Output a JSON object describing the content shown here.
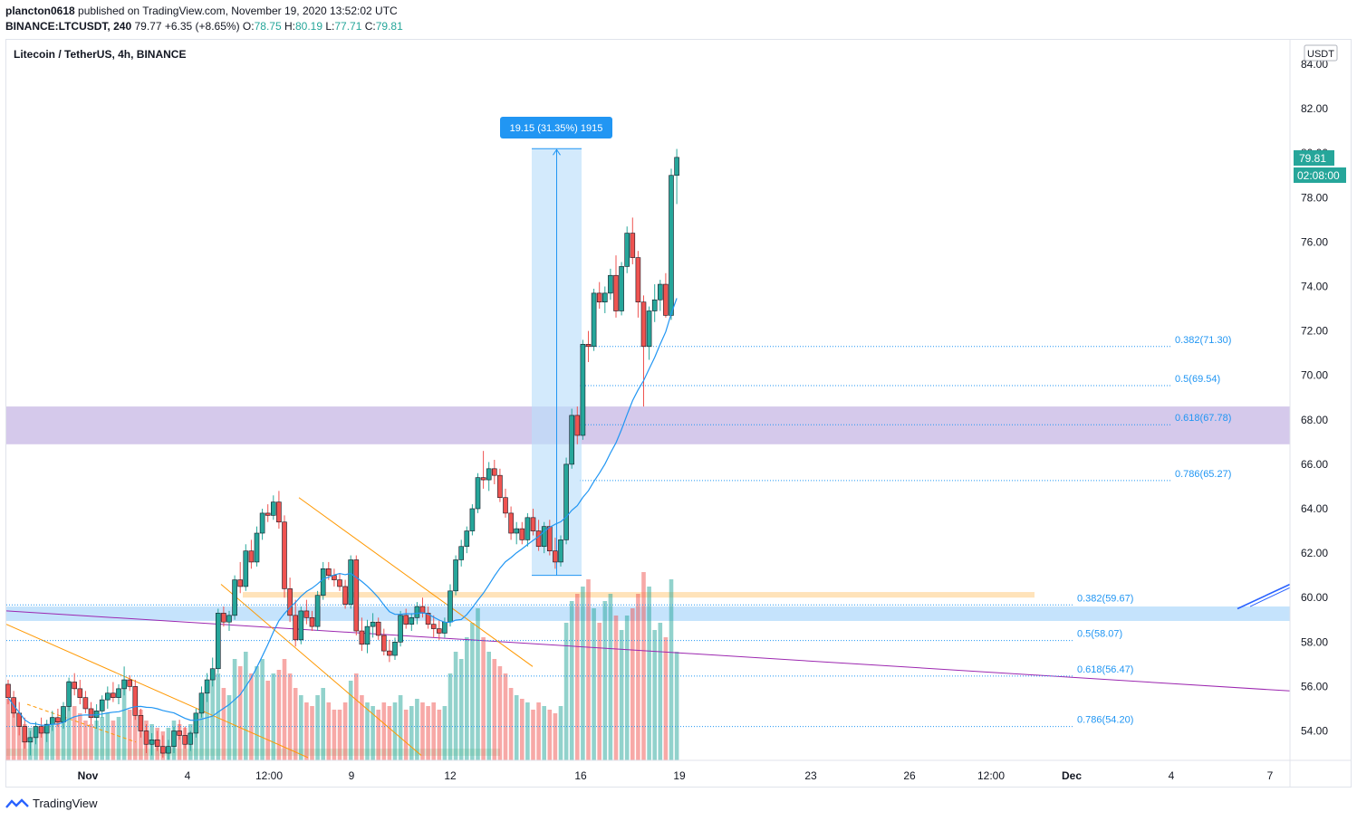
{
  "header": {
    "publisher": "plancton0618",
    "published_text": "published on TradingView.com, November 19, 2020 13:52:02 UTC",
    "symbol": "BINANCE:LTCUSDT, 240",
    "last": "79.77",
    "change": "+6.35 (+8.65%)",
    "o_label": "O:",
    "o_val": "78.75",
    "h_label": "H:",
    "h_val": "80.19",
    "l_label": "L:",
    "l_val": "77.71",
    "c_label": "C:",
    "c_val": "79.81"
  },
  "chart_title": "Litecoin / TetherUS, 4h, BINANCE",
  "currency_badge": "USDT",
  "price_tag": "79.81",
  "countdown_tag": "02:08:00",
  "measure_label": "19.15 (31.35%) 1915",
  "footer_brand": "TradingView",
  "colors": {
    "up": "#26a69a",
    "down": "#ef5350",
    "ma": "#2196f3",
    "fib": "#2196f3",
    "zone_purple": "#b39ddb",
    "zone_blue": "#bbdefb",
    "zone_orange": "#ffe0b2",
    "trend_orange": "#ff9800",
    "trend_purple": "#9c27b0",
    "measure_fill": "#bbdefb"
  },
  "chart_data": {
    "type": "candlestick",
    "title": "Litecoin / TetherUS, 4h, BINANCE",
    "y_axis": {
      "ticks": [
        "84.00",
        "82.00",
        "80.00",
        "78.00",
        "76.00",
        "74.00",
        "72.00",
        "70.00",
        "68.00",
        "66.00",
        "64.00",
        "62.00",
        "60.00",
        "58.00",
        "56.00",
        "54.00"
      ],
      "range": [
        52.8,
        84.9
      ]
    },
    "x_axis": {
      "ticks": [
        "Nov",
        "4",
        "12:00",
        "9",
        "12",
        "16",
        "19",
        "23",
        "26",
        "12:00",
        "Dec",
        "4",
        "7"
      ]
    },
    "candles": [
      [
        56.1,
        56.3,
        55.2,
        55.5
      ],
      [
        55.5,
        55.8,
        54.6,
        54.8
      ],
      [
        54.8,
        55.3,
        53.8,
        54.2
      ],
      [
        54.2,
        54.6,
        53.2,
        53.5
      ],
      [
        53.5,
        54.0,
        52.9,
        53.7
      ],
      [
        53.7,
        54.4,
        53.4,
        54.2
      ],
      [
        54.2,
        54.6,
        53.7,
        53.9
      ],
      [
        53.9,
        54.5,
        53.5,
        54.3
      ],
      [
        54.3,
        54.9,
        54.0,
        54.6
      ],
      [
        54.6,
        55.0,
        54.2,
        54.4
      ],
      [
        54.4,
        55.3,
        54.1,
        55.1
      ],
      [
        55.1,
        56.4,
        54.9,
        56.2
      ],
      [
        56.2,
        56.6,
        55.6,
        55.9
      ],
      [
        55.9,
        56.3,
        55.2,
        55.5
      ],
      [
        55.5,
        55.8,
        54.8,
        55.0
      ],
      [
        55.0,
        55.3,
        54.3,
        54.6
      ],
      [
        54.6,
        55.2,
        54.1,
        54.9
      ],
      [
        54.9,
        55.6,
        54.6,
        55.4
      ],
      [
        55.4,
        56.0,
        55.0,
        55.7
      ],
      [
        55.7,
        56.2,
        55.3,
        55.5
      ],
      [
        55.5,
        56.1,
        55.2,
        55.9
      ],
      [
        55.9,
        56.9,
        55.6,
        56.3
      ],
      [
        56.3,
        56.5,
        55.8,
        56.0
      ],
      [
        56.0,
        56.3,
        54.5,
        54.7
      ],
      [
        54.7,
        55.0,
        53.7,
        54.0
      ],
      [
        54.0,
        54.3,
        53.0,
        53.4
      ],
      [
        53.4,
        53.9,
        52.9,
        53.6
      ],
      [
        53.6,
        54.0,
        53.1,
        53.3
      ],
      [
        53.3,
        53.8,
        52.8,
        53.0
      ],
      [
        53.0,
        53.6,
        52.7,
        53.3
      ],
      [
        53.3,
        54.2,
        53.0,
        54.0
      ],
      [
        54.0,
        54.5,
        53.6,
        53.8
      ],
      [
        53.8,
        54.2,
        53.2,
        53.4
      ],
      [
        53.4,
        54.0,
        53.1,
        53.9
      ],
      [
        53.9,
        55.0,
        53.7,
        54.8
      ],
      [
        54.8,
        56.0,
        54.6,
        55.7
      ],
      [
        55.7,
        56.6,
        55.3,
        56.3
      ],
      [
        56.3,
        57.3,
        56.0,
        56.8
      ],
      [
        56.8,
        59.5,
        56.6,
        59.3
      ],
      [
        59.3,
        59.6,
        58.7,
        58.9
      ],
      [
        58.9,
        59.4,
        58.5,
        59.2
      ],
      [
        59.2,
        61.0,
        59.0,
        60.8
      ],
      [
        60.8,
        61.6,
        60.2,
        60.5
      ],
      [
        60.5,
        62.4,
        60.3,
        62.1
      ],
      [
        62.1,
        62.6,
        61.3,
        61.6
      ],
      [
        61.6,
        63.2,
        61.4,
        62.9
      ],
      [
        62.9,
        64.0,
        62.6,
        63.8
      ],
      [
        63.8,
        64.2,
        63.4,
        63.7
      ],
      [
        63.7,
        64.6,
        63.5,
        64.3
      ],
      [
        64.3,
        64.8,
        63.1,
        63.4
      ],
      [
        63.4,
        63.7,
        60.0,
        60.4
      ],
      [
        60.4,
        60.9,
        58.9,
        59.2
      ],
      [
        59.2,
        59.9,
        57.8,
        58.1
      ],
      [
        58.1,
        59.6,
        57.9,
        59.4
      ],
      [
        59.4,
        59.9,
        58.8,
        59.1
      ],
      [
        59.1,
        59.4,
        58.5,
        58.7
      ],
      [
        58.7,
        60.3,
        58.5,
        60.1
      ],
      [
        60.1,
        61.6,
        59.9,
        61.3
      ],
      [
        61.3,
        61.6,
        60.8,
        61.0
      ],
      [
        61.0,
        61.3,
        60.5,
        60.8
      ],
      [
        60.8,
        61.1,
        60.3,
        60.5
      ],
      [
        60.5,
        60.8,
        59.5,
        59.7
      ],
      [
        59.7,
        61.9,
        59.5,
        61.7
      ],
      [
        61.7,
        61.9,
        58.3,
        58.5
      ],
      [
        58.5,
        59.1,
        57.6,
        57.9
      ],
      [
        57.9,
        59.0,
        57.5,
        58.7
      ],
      [
        58.7,
        59.3,
        58.2,
        58.9
      ],
      [
        58.9,
        59.1,
        58.1,
        58.3
      ],
      [
        58.3,
        58.6,
        57.4,
        57.6
      ],
      [
        57.6,
        58.1,
        57.1,
        57.4
      ],
      [
        57.4,
        58.2,
        57.2,
        58.0
      ],
      [
        58.0,
        59.4,
        57.8,
        59.2
      ],
      [
        59.2,
        59.5,
        58.6,
        58.8
      ],
      [
        58.8,
        59.3,
        58.5,
        59.1
      ],
      [
        59.1,
        59.8,
        58.8,
        59.6
      ],
      [
        59.6,
        60.0,
        59.1,
        59.3
      ],
      [
        59.3,
        59.6,
        58.6,
        58.8
      ],
      [
        58.8,
        59.2,
        58.2,
        58.6
      ],
      [
        58.6,
        59.0,
        58.1,
        58.4
      ],
      [
        58.4,
        59.1,
        58.2,
        58.9
      ],
      [
        58.9,
        60.6,
        58.7,
        60.3
      ],
      [
        60.3,
        61.9,
        60.1,
        61.7
      ],
      [
        61.7,
        62.6,
        61.4,
        62.3
      ],
      [
        62.3,
        63.2,
        62.0,
        63.0
      ],
      [
        63.0,
        64.2,
        62.8,
        64.0
      ],
      [
        64.0,
        65.6,
        63.8,
        65.4
      ],
      [
        65.4,
        66.6,
        64.9,
        65.3
      ],
      [
        65.3,
        66.1,
        64.8,
        65.8
      ],
      [
        65.8,
        66.2,
        65.1,
        65.5
      ],
      [
        65.5,
        65.8,
        64.3,
        64.5
      ],
      [
        64.5,
        64.9,
        63.6,
        63.8
      ],
      [
        63.8,
        64.1,
        62.6,
        62.9
      ],
      [
        62.9,
        63.4,
        62.4,
        63.1
      ],
      [
        63.1,
        63.4,
        62.4,
        62.6
      ],
      [
        62.6,
        63.8,
        62.3,
        63.6
      ],
      [
        63.6,
        64.0,
        62.8,
        63.0
      ],
      [
        63.0,
        63.5,
        62.1,
        62.3
      ],
      [
        62.3,
        63.4,
        62.0,
        63.2
      ],
      [
        63.2,
        63.5,
        61.9,
        62.1
      ],
      [
        62.1,
        62.7,
        61.3,
        61.6
      ],
      [
        61.6,
        62.8,
        61.4,
        62.6
      ],
      [
        62.6,
        66.3,
        62.4,
        66.0
      ],
      [
        66.0,
        68.5,
        65.8,
        68.2
      ],
      [
        68.2,
        68.6,
        66.9,
        67.3
      ],
      [
        67.3,
        71.6,
        67.1,
        71.4
      ],
      [
        71.4,
        72.0,
        70.6,
        71.3
      ],
      [
        71.3,
        73.9,
        71.1,
        73.7
      ],
      [
        73.7,
        74.2,
        73.0,
        73.3
      ],
      [
        73.3,
        74.0,
        72.8,
        73.7
      ],
      [
        73.7,
        74.8,
        73.4,
        74.5
      ],
      [
        74.5,
        75.4,
        72.6,
        72.9
      ],
      [
        72.9,
        75.1,
        72.7,
        74.9
      ],
      [
        74.9,
        76.7,
        74.6,
        76.4
      ],
      [
        76.4,
        77.1,
        75.0,
        75.3
      ],
      [
        75.3,
        75.6,
        72.6,
        73.3
      ],
      [
        73.3,
        73.6,
        68.6,
        71.3
      ],
      [
        71.3,
        73.1,
        70.7,
        72.9
      ],
      [
        72.9,
        74.1,
        72.4,
        73.4
      ],
      [
        73.4,
        74.3,
        72.9,
        74.1
      ],
      [
        74.1,
        74.6,
        72.6,
        72.7
      ],
      [
        72.7,
        79.3,
        72.5,
        79.0
      ],
      [
        79.0,
        80.19,
        77.71,
        79.81
      ]
    ],
    "volume": [
      17,
      15,
      12,
      10,
      9,
      8,
      9,
      10,
      12,
      11,
      12,
      22,
      15,
      13,
      11,
      10,
      11,
      12,
      13,
      11,
      12,
      21,
      14,
      18,
      14,
      11,
      10,
      9,
      8,
      9,
      11,
      10,
      9,
      10,
      12,
      18,
      22,
      24,
      24,
      20,
      18,
      28,
      26,
      30,
      24,
      26,
      28,
      22,
      24,
      25,
      28,
      24,
      20,
      18,
      16,
      15,
      18,
      20,
      16,
      14,
      14,
      16,
      22,
      24,
      18,
      16,
      15,
      14,
      16,
      15,
      16,
      18,
      14,
      15,
      17,
      16,
      15,
      16,
      14,
      15,
      24,
      30,
      28,
      34,
      38,
      42,
      34,
      30,
      28,
      26,
      24,
      20,
      18,
      17,
      16,
      14,
      16,
      15,
      14,
      13,
      15,
      38,
      44,
      46,
      48,
      50,
      42,
      38,
      44,
      46,
      40,
      36,
      40,
      42,
      46,
      52,
      48,
      36,
      38,
      34,
      50,
      30
    ],
    "fibonacci_upper": [
      "0.382(71.30)",
      "0.5(69.54)",
      "0.618(67.78)",
      "0.786(65.27)"
    ],
    "fibonacci_lower": [
      "0.382(59.67)",
      "0.5(58.07)",
      "0.618(56.47)",
      "0.786(54.20)"
    ],
    "current_price": 79.81
  }
}
